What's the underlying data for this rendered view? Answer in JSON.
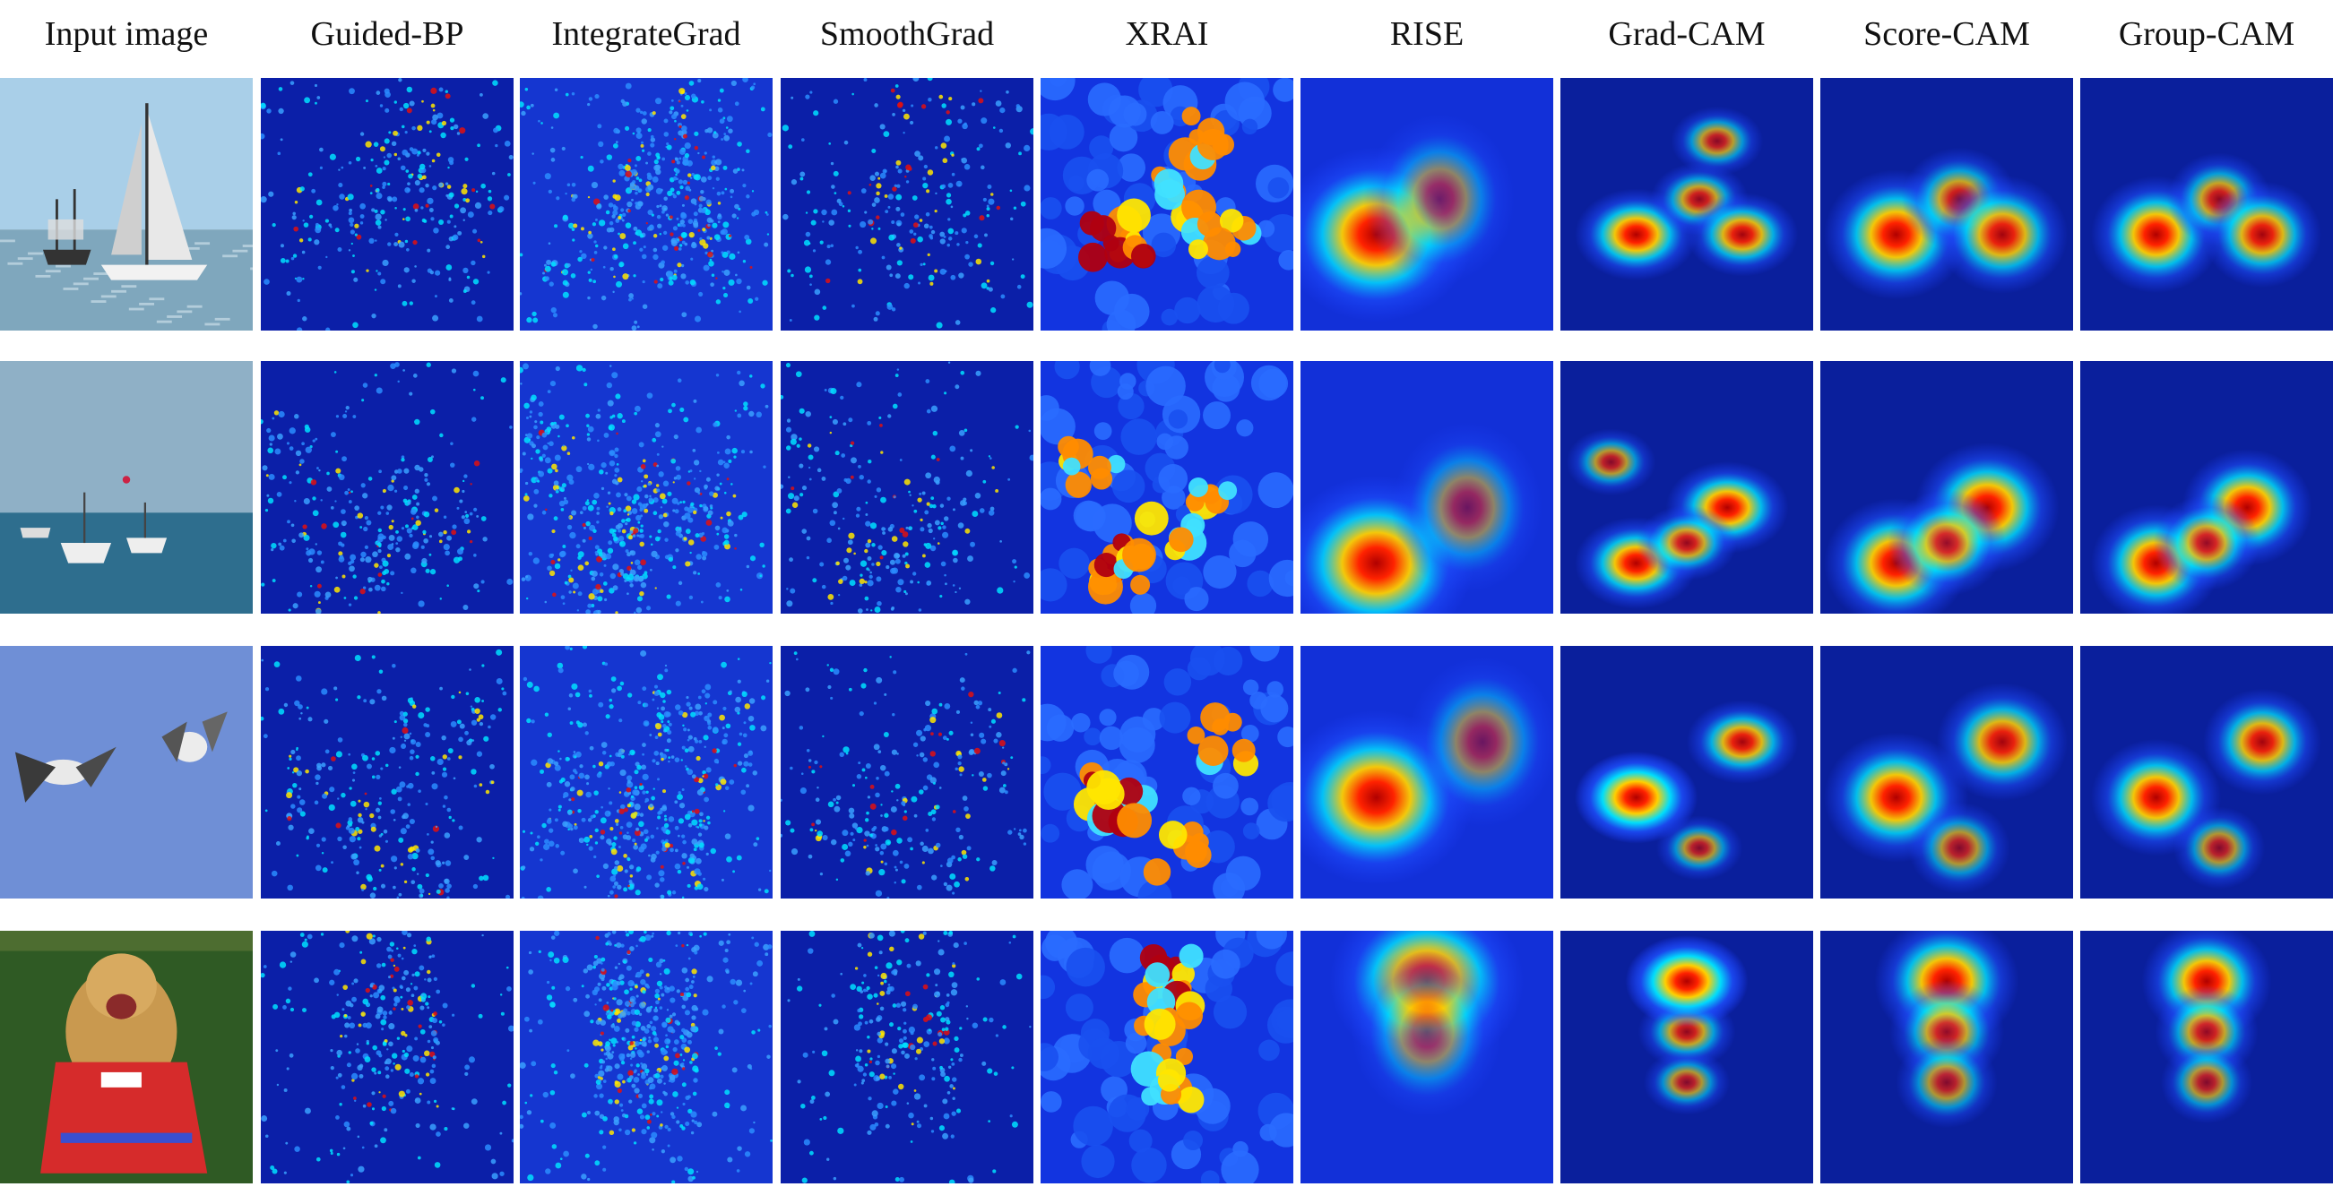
{
  "figure": {
    "columns": [
      {
        "key": "input",
        "label": "Input image"
      },
      {
        "key": "guided_bp",
        "label": "Guided-BP"
      },
      {
        "key": "integrated_grad",
        "label": "IntegrateGrad"
      },
      {
        "key": "smooth_grad",
        "label": "SmoothGrad"
      },
      {
        "key": "xrai",
        "label": "XRAI"
      },
      {
        "key": "rise",
        "label": "RISE"
      },
      {
        "key": "grad_cam",
        "label": "Grad-CAM"
      },
      {
        "key": "score_cam",
        "label": "Score-CAM"
      },
      {
        "key": "group_cam",
        "label": "Group-CAM"
      }
    ],
    "rows": [
      {
        "key": "sailboats",
        "scene": "sailboat-photo"
      },
      {
        "key": "boats-at-sea",
        "scene": "boats-photo"
      },
      {
        "key": "birds",
        "scene": "birds-photo"
      },
      {
        "key": "dog",
        "scene": "dog-photo"
      }
    ],
    "colors": {
      "heatmap_background": "#0a1f9c",
      "heatmap_low": "#1e3cff",
      "heatmap_mid": "#00e5ff",
      "heatmap_high": "#ffff00",
      "heatmap_peak": "#c00000"
    }
  }
}
